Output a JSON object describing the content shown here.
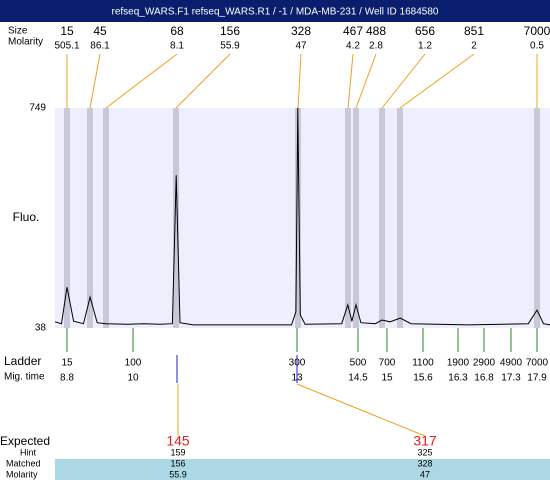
{
  "header": {
    "title": "refseq_WARS.F1  refseq_WARS.R1 / -1 / MDA-MB-231 / Well ID 1684580"
  },
  "peaks": {
    "size_label": "Size",
    "molarity_label": "Molarity",
    "size": [
      15,
      45,
      68,
      156,
      328,
      467,
      488,
      656,
      851,
      7000
    ],
    "molarity": [
      505.1,
      86.1,
      8.1,
      55.9,
      47,
      4.2,
      2.8,
      1.2,
      2,
      0.5
    ]
  },
  "electropherogram": {
    "y_label": "Fluo.",
    "ylim": [
      38,
      749
    ],
    "yticks": [
      38,
      749
    ],
    "trace": {
      "x": [
        8.58,
        8.7,
        8.8,
        8.92,
        9.1,
        9.22,
        9.35,
        9.51,
        9.9,
        10.2,
        10.5,
        10.72,
        10.79,
        10.86,
        11.1,
        12.9,
        12.98,
        13.02,
        13.08,
        13.2,
        14.1,
        14.25,
        14.35,
        14.45,
        14.55,
        14.8,
        14.91,
        15.05,
        15.22,
        15.4,
        16.5,
        17.7,
        17.9,
        18.05,
        18.2
      ],
      "y": [
        58,
        52,
        170,
        60,
        52,
        138,
        55,
        52,
        50,
        52,
        50,
        52,
        532,
        55,
        48,
        48,
        90,
        749,
        80,
        50,
        52,
        113,
        60,
        113,
        55,
        52,
        64,
        58,
        70,
        52,
        48,
        52,
        96,
        52,
        48
      ]
    }
  },
  "ladder": {
    "label": "Ladder",
    "time_label": "Mig. time",
    "size": [
      15,
      100,
      300,
      500,
      700,
      1100,
      1900,
      2900,
      4900,
      7000
    ],
    "mig_time": [
      8.8,
      10,
      13,
      14.5,
      15,
      15.6,
      16.3,
      16.8,
      17.3,
      17.9
    ]
  },
  "expected": {
    "label": "Expected",
    "hint_label": "Hint",
    "matched_label": "Matched",
    "molarity_label": "Molarity",
    "expected": [
      145,
      317
    ],
    "hint": [
      159,
      325
    ],
    "matched": [
      156,
      328
    ],
    "molarity": [
      55.9,
      47
    ]
  }
}
